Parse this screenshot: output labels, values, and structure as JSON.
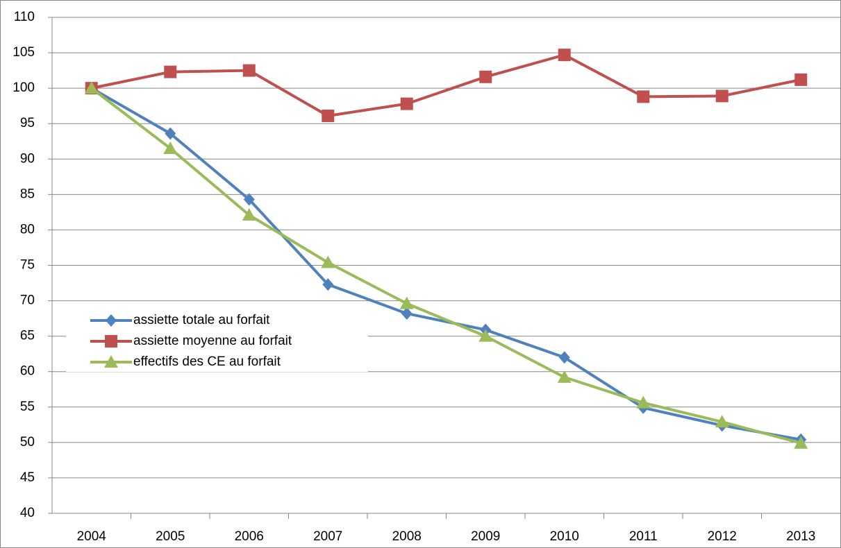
{
  "chart_data": {
    "type": "line",
    "categories": [
      "2004",
      "2005",
      "2006",
      "2007",
      "2008",
      "2009",
      "2010",
      "2011",
      "2012",
      "2013"
    ],
    "series": [
      {
        "name": "assiette totale au forfait",
        "color": "#4f81bd",
        "marker": "diamond",
        "values": [
          100,
          93.6,
          84.3,
          72.3,
          68.2,
          65.9,
          62.0,
          54.9,
          52.4,
          50.4
        ]
      },
      {
        "name": "assiette moyenne au forfait",
        "color": "#c0504d",
        "marker": "square",
        "values": [
          100,
          102.3,
          102.5,
          96.1,
          97.8,
          101.6,
          104.7,
          98.8,
          98.9,
          101.2
        ]
      },
      {
        "name": "effectifs des CE au forfait",
        "color": "#9bbb59",
        "marker": "triangle",
        "values": [
          100,
          91.5,
          82.1,
          75.4,
          69.6,
          65.0,
          59.2,
          55.6,
          52.9,
          49.9
        ]
      }
    ],
    "ylim": [
      40,
      110
    ],
    "yticks": [
      40,
      45,
      50,
      55,
      60,
      65,
      70,
      75,
      80,
      85,
      90,
      95,
      100,
      105,
      110
    ],
    "grid": true,
    "legend": "left"
  }
}
